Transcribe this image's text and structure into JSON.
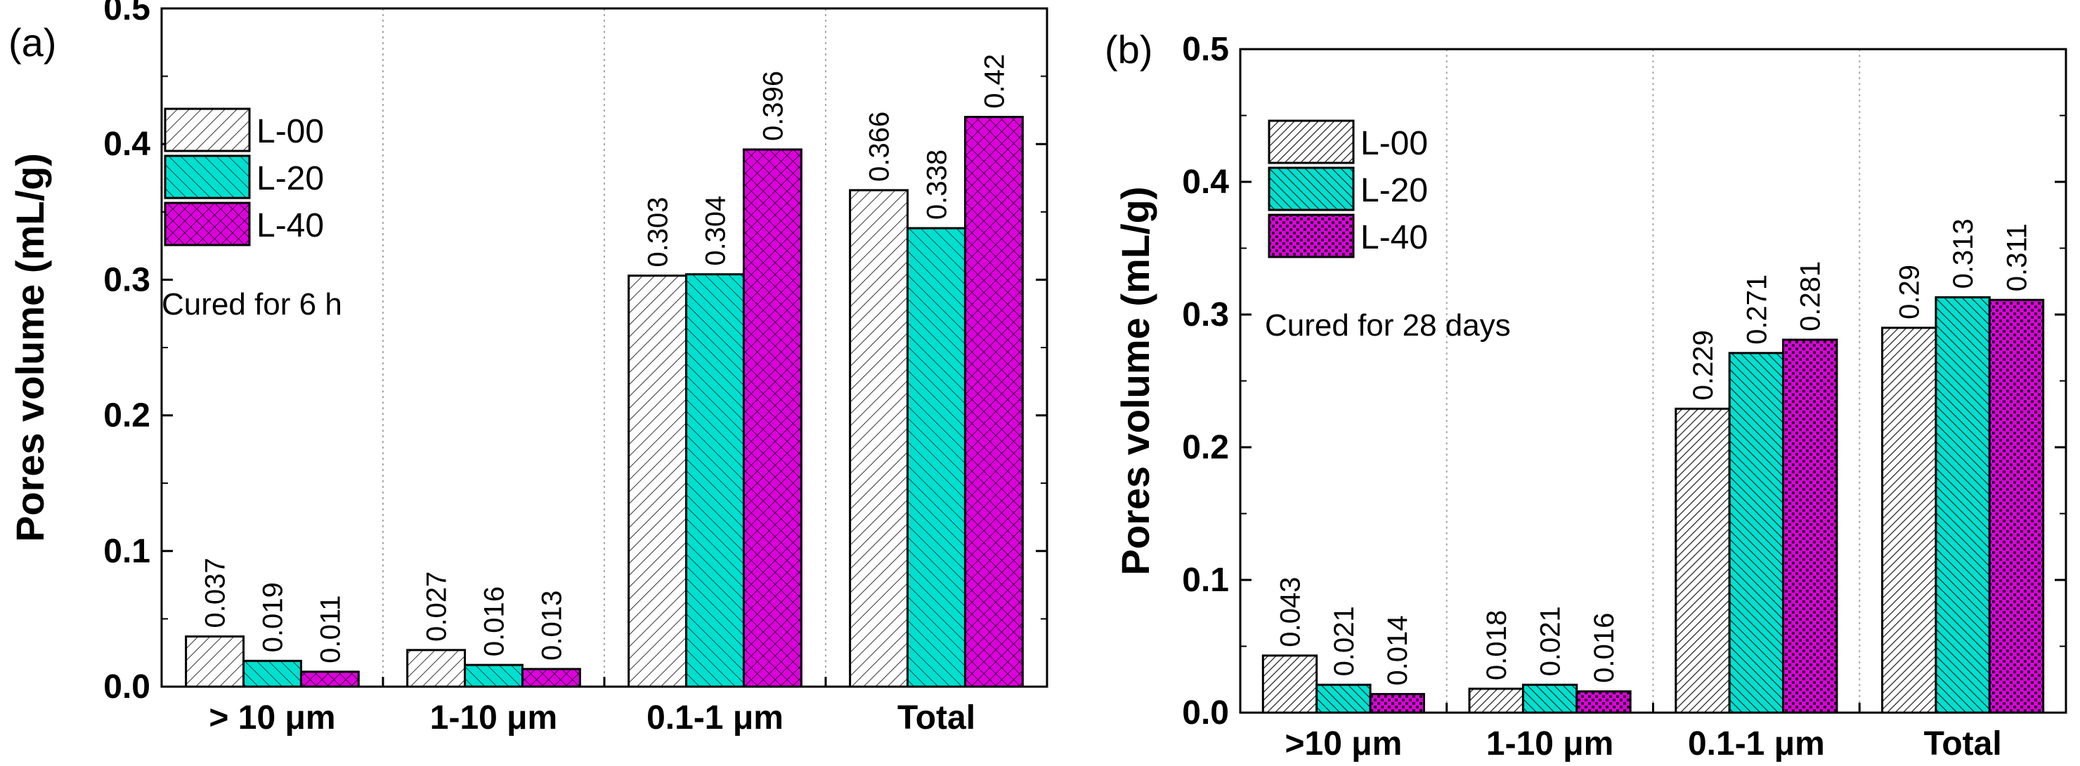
{
  "chart_data": [
    {
      "type": "bar",
      "panel_label": "(a)",
      "categories": [
        "> 10 μm",
        "1-10 μm",
        "0.1-1 μm",
        "Total"
      ],
      "series": [
        {
          "name": "L-00",
          "values": [
            0.037,
            0.027,
            0.303,
            0.366
          ],
          "labels": [
            "0.037",
            "0.027",
            "0.303",
            "0.366"
          ],
          "color": "#ffffff",
          "pattern": "diag-fine"
        },
        {
          "name": "L-20",
          "values": [
            0.019,
            0.016,
            0.304,
            0.338
          ],
          "labels": [
            "0.019",
            "0.016",
            "0.304",
            "0.338"
          ],
          "color": "#00e0d0",
          "pattern": "diag-back"
        },
        {
          "name": "L-40",
          "values": [
            0.011,
            0.013,
            0.396,
            0.42
          ],
          "labels": [
            "0.011",
            "0.013",
            "0.396",
            "0.42"
          ],
          "color": "#dd00dd",
          "pattern": "crosshatch"
        }
      ],
      "ylabel": "Pores volume (mL/g)",
      "xlabel": "",
      "ylim": [
        0,
        0.5
      ],
      "yticks": [
        "0.0",
        "0.1",
        "0.2",
        "0.3",
        "0.4",
        "0.5"
      ],
      "annotation": "Cured for 6 h",
      "legend_position": "top-left"
    },
    {
      "type": "bar",
      "panel_label": "(b)",
      "categories": [
        ">10 μm",
        "1-10 μm",
        "0.1-1 μm",
        "Total"
      ],
      "series": [
        {
          "name": "L-00",
          "values": [
            0.043,
            0.018,
            0.229,
            0.29
          ],
          "labels": [
            "0.043",
            "0.018",
            "0.229",
            "0.29"
          ],
          "color": "#ffffff",
          "pattern": "diag-dense"
        },
        {
          "name": "L-20",
          "values": [
            0.021,
            0.021,
            0.271,
            0.313
          ],
          "labels": [
            "0.021",
            "0.021",
            "0.271",
            "0.313"
          ],
          "color": "#00e0d0",
          "pattern": "diag-back-dense"
        },
        {
          "name": "L-40",
          "values": [
            0.014,
            0.016,
            0.281,
            0.311
          ],
          "labels": [
            "0.014",
            "0.016",
            "0.281",
            "0.311"
          ],
          "color": "#dd00dd",
          "pattern": "dots"
        }
      ],
      "ylabel": "Pores volume (mL/g)",
      "xlabel": "",
      "ylim": [
        0,
        0.5
      ],
      "yticks": [
        "0.0",
        "0.1",
        "0.2",
        "0.3",
        "0.4",
        "0.5"
      ],
      "annotation": "Cured for 28 days",
      "legend_position": "top-left"
    }
  ]
}
